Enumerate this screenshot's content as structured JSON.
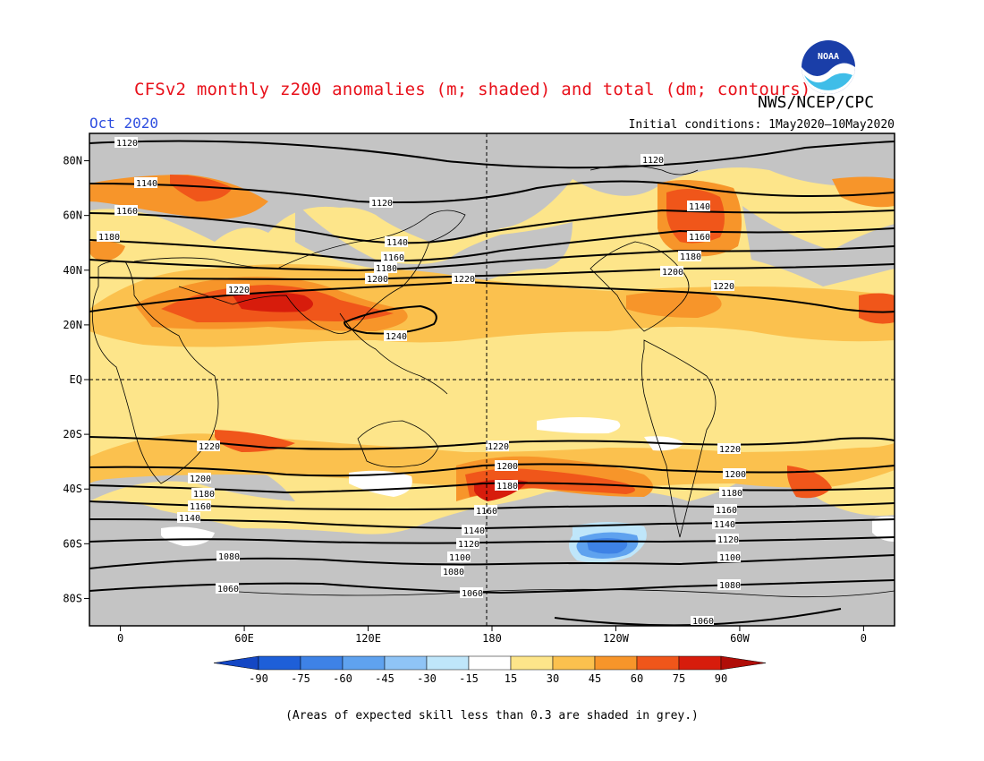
{
  "title": "CFSv2 monthly z200 anomalies (m; shaded) and total (dm; contours)",
  "agency": "NWS/NCEP/CPC",
  "logo_text": "NOAA",
  "month_label": "Oct 2020",
  "initial_conditions": "Initial conditions: 1May2020—10May2020",
  "footnote": "(Areas of expected skill less than 0.3 are shaded in grey.)",
  "lat_labels": [
    "80N",
    "60N",
    "40N",
    "20N",
    "EQ",
    "20S",
    "40S",
    "60S",
    "80S"
  ],
  "lon_labels": [
    "0",
    "60E",
    "120E",
    "180",
    "120W",
    "60W",
    "0"
  ],
  "colorbar": {
    "ticks": [
      "-90",
      "-75",
      "-60",
      "-45",
      "-30",
      "-15",
      "15",
      "30",
      "45",
      "60",
      "75",
      "90"
    ],
    "colors": [
      "#1e5fd8",
      "#3e82e6",
      "#5fa2ef",
      "#8fc4f6",
      "#bfe6fa",
      "#ffffff",
      "#fde58a",
      "#fbc14e",
      "#f7952a",
      "#f0561a",
      "#d71c0c"
    ],
    "low_color": "#1447c4",
    "high_color": "#b00d08"
  },
  "contour_labels": [
    "1120",
    "1140",
    "1160",
    "1180",
    "1200",
    "1220",
    "1240",
    "1100",
    "1080",
    "1060"
  ],
  "colors": {
    "skill_grey": "#c4c4c4",
    "title_red": "#e8101a",
    "month_blue": "#2f4fe0"
  }
}
